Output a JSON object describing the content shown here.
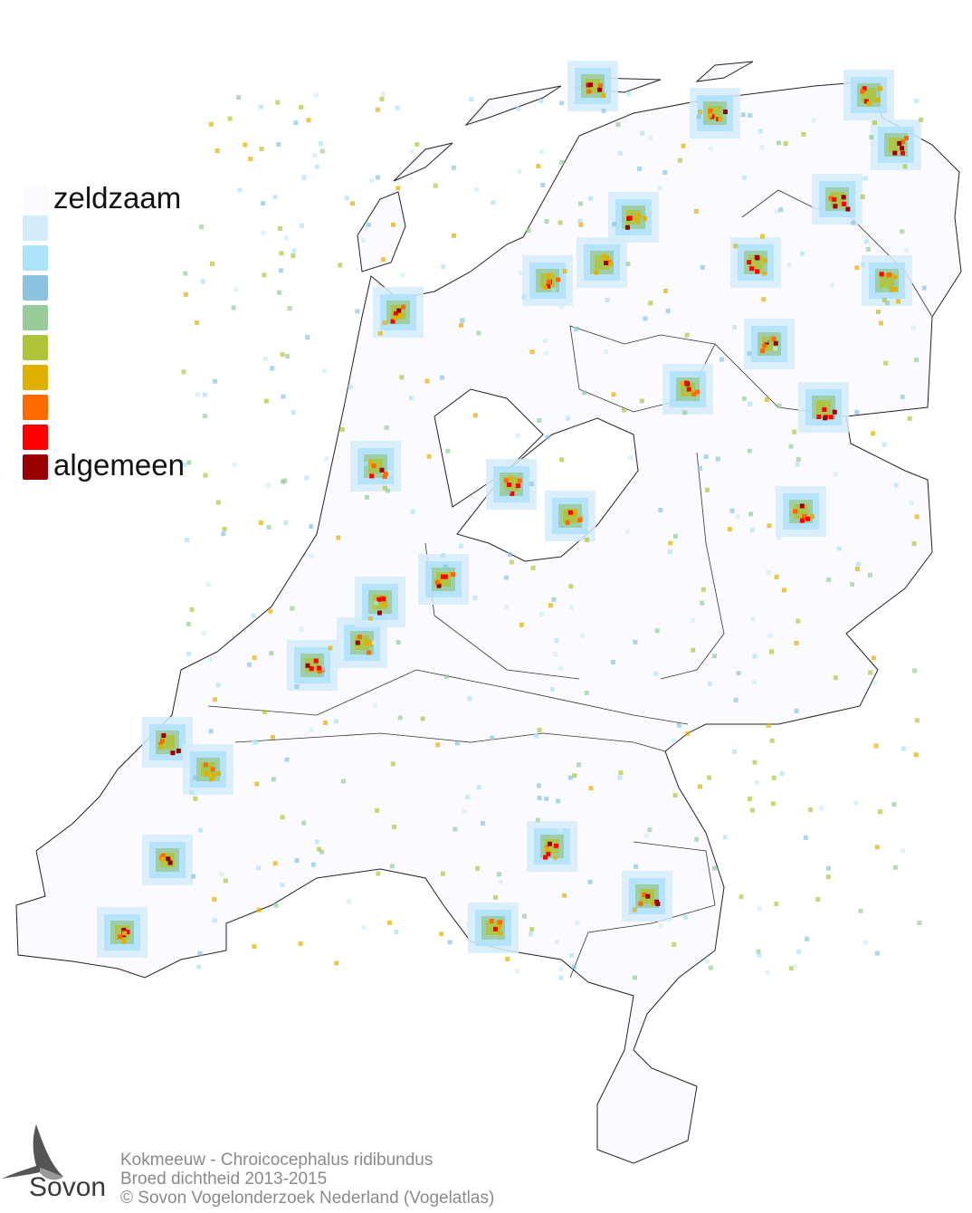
{
  "legend": {
    "title_top": "zeldzaam",
    "title_bottom": "algemeen",
    "colors": [
      "#fbfbff",
      "#d3ebfa",
      "#aee1fa",
      "#8bc3df",
      "#99ca99",
      "#b0c43a",
      "#e0b000",
      "#ff6a00",
      "#ff0000",
      "#990000"
    ]
  },
  "footer": {
    "line1": "Kokmeeuw - Chroicocephalus ridibundus",
    "line2": "Broed dichtheid 2013-2015",
    "line3": "© Sovon Vogelonderzoek Nederland (Vogelatlas)"
  },
  "logo": {
    "text": "Sovon"
  }
}
